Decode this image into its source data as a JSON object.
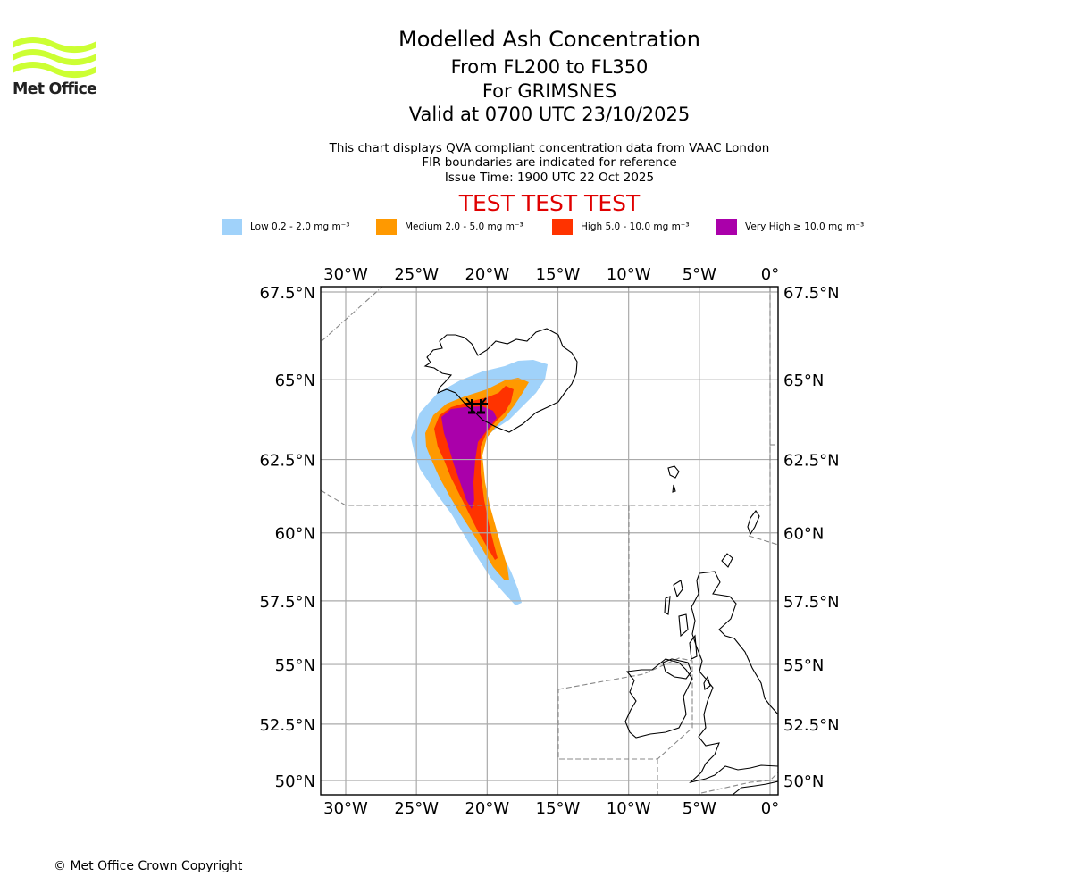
{
  "header": {
    "title": "Modelled Ash Concentration",
    "subtitle_levels": "From FL200 to FL350",
    "subtitle_volcano": "For GRIMSNES",
    "subtitle_valid": "Valid at 0700 UTC 23/10/2025",
    "info_line_1": "This chart displays QVA compliant concentration data from VAAC London",
    "info_line_2": "FIR boundaries are indicated for reference",
    "info_line_3": "Issue Time: 1900 UTC 22 Oct 2025",
    "test_banner": "TEST TEST TEST"
  },
  "logo": {
    "text": "Met Office",
    "icon": "met-office-waves-icon",
    "color": "#ccff33"
  },
  "legend": [
    {
      "label": "Low 0.2 - 2.0 mg m⁻³",
      "color": "#a0d2fa",
      "level": "low"
    },
    {
      "label": "Medium 2.0 - 5.0 mg m⁻³",
      "color": "#ff9900",
      "level": "medium"
    },
    {
      "label": "High 5.0 - 10.0 mg m⁻³",
      "color": "#ff3300",
      "level": "high"
    },
    {
      "label": "Very High  ≥  10.0 mg m⁻³",
      "color": "#aa00aa",
      "level": "very-high"
    }
  ],
  "map": {
    "lon_ticks": [
      "30°W",
      "25°W",
      "20°W",
      "15°W",
      "10°W",
      "5°W",
      "0°"
    ],
    "lat_ticks": [
      "67.5°N",
      "65°N",
      "62.5°N",
      "60°N",
      "57.5°N",
      "55°N",
      "52.5°N",
      "50°N"
    ],
    "lon_values": [
      -30,
      -25,
      -20,
      -15,
      -10,
      -5,
      0
    ],
    "lat_values": [
      67.5,
      65,
      62.5,
      60,
      57.5,
      55,
      52.5,
      50
    ],
    "extent": {
      "lon_min": -31.7,
      "lon_max": 0.6,
      "lat_min": 49.5,
      "lat_max": 67.7
    },
    "volcano_marker": {
      "name": "GRIMSNES",
      "lon": -17.3,
      "lat": 64.4,
      "icon": "volcano-icon"
    },
    "plume_regions": [
      "low",
      "medium",
      "high",
      "very-high"
    ]
  },
  "footer": {
    "copyright": "© Met Office Crown Copyright"
  }
}
